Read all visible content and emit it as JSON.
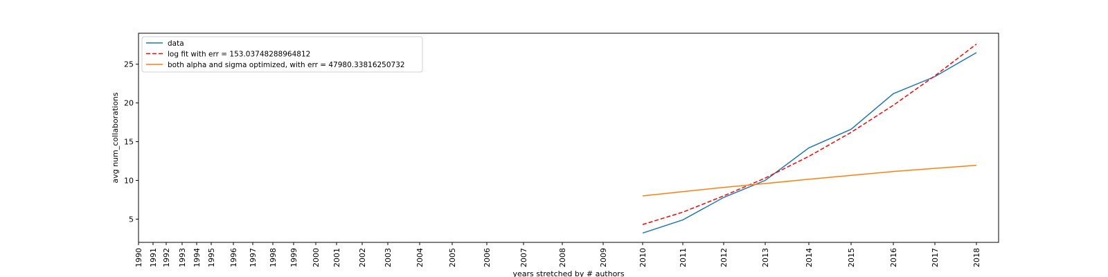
{
  "chart_data": {
    "type": "line",
    "title": "",
    "xlabel": "years stretched by # authors",
    "ylabel": "avg num_collaborations",
    "x_tick_labels": [
      "1990",
      "1991",
      "1992",
      "1993",
      "1994",
      "1995",
      "1996",
      "1997",
      "1998",
      "1999",
      "2000",
      "2001",
      "2002",
      "2003",
      "2004",
      "2005",
      "2006",
      "2007",
      "2008",
      "2009",
      "2010",
      "2011",
      "2012",
      "2013",
      "2014",
      "2015",
      "2016",
      "2017",
      "2018"
    ],
    "y_ticks": [
      5,
      10,
      15,
      20,
      25
    ],
    "ylim": [
      2,
      29
    ],
    "grid": false,
    "legend_position": "top-left",
    "series": [
      {
        "name": "data",
        "color": "#1f77b4",
        "style": "solid",
        "points": [
          [
            "2010",
            3.2
          ],
          [
            "2011",
            4.9
          ],
          [
            "2012",
            7.8
          ],
          [
            "2013",
            10.0
          ],
          [
            "2014",
            14.2
          ],
          [
            "2015",
            16.6
          ],
          [
            "2016",
            21.2
          ],
          [
            "2017",
            23.4
          ],
          [
            "2018",
            26.5
          ]
        ]
      },
      {
        "name": "log fit with err = 153.03748288964812",
        "color": "#ff0000",
        "style": "dashed",
        "points": [
          [
            "2010",
            4.3
          ],
          [
            "2011",
            5.9
          ],
          [
            "2012",
            8.0
          ],
          [
            "2013",
            10.3
          ],
          [
            "2014",
            13.1
          ],
          [
            "2015",
            16.2
          ],
          [
            "2016",
            19.7
          ],
          [
            "2017",
            23.5
          ],
          [
            "2018",
            27.6
          ]
        ]
      },
      {
        "name": "both alpha and sigma optimized, with err = 47980.33816250732",
        "color": "#ff7f0e",
        "style": "solid",
        "points": [
          [
            "2010",
            8.0
          ],
          [
            "2011",
            8.55
          ],
          [
            "2012",
            9.1
          ],
          [
            "2013",
            9.6
          ],
          [
            "2014",
            10.15
          ],
          [
            "2015",
            10.65
          ],
          [
            "2016",
            11.15
          ],
          [
            "2017",
            11.55
          ],
          [
            "2018",
            11.95
          ]
        ]
      }
    ]
  }
}
